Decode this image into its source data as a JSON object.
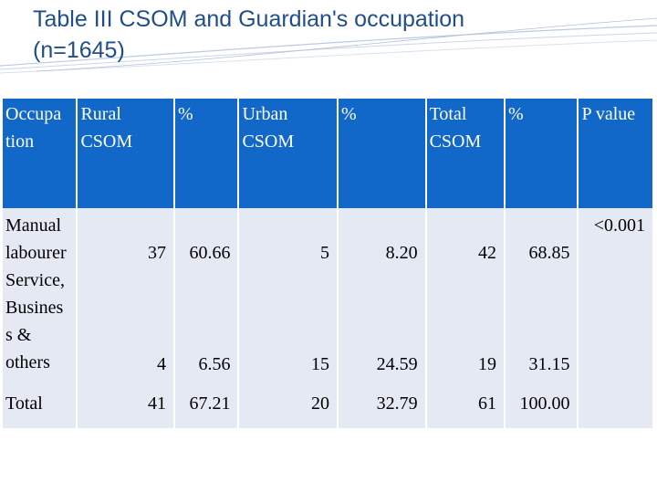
{
  "title": {
    "line1": "Table III  CSOM and Guardian's occupation",
    "line2": "(n=1645)"
  },
  "table": {
    "headers": [
      "Occupa tion",
      "Rural CSOM",
      "%",
      "Urban CSOM",
      "%",
      "Total CSOM",
      "%",
      "P value"
    ],
    "rows": [
      {
        "occupation": "Manual labourer",
        "rural": "37",
        "rural_pct": "60.66",
        "urban": "5",
        "urban_pct": "8.20",
        "total": "42",
        "total_pct": "68.85"
      },
      {
        "occupation": "Service, Busines s & others",
        "rural": "4",
        "rural_pct": "6.56",
        "urban": "15",
        "urban_pct": "24.59",
        "total": "19",
        "total_pct": "31.15"
      },
      {
        "occupation": "Total",
        "rural": "41",
        "rural_pct": "67.21",
        "urban": "20",
        "urban_pct": "32.79",
        "total": "61",
        "total_pct": "100.00"
      }
    ],
    "p_value": "<0.001"
  },
  "colors": {
    "header_bg": "#1168c8",
    "body_bg": "#e5e9f4",
    "pvalue_bg": "#cfd6e9",
    "title_color": "#1f4e8a"
  }
}
